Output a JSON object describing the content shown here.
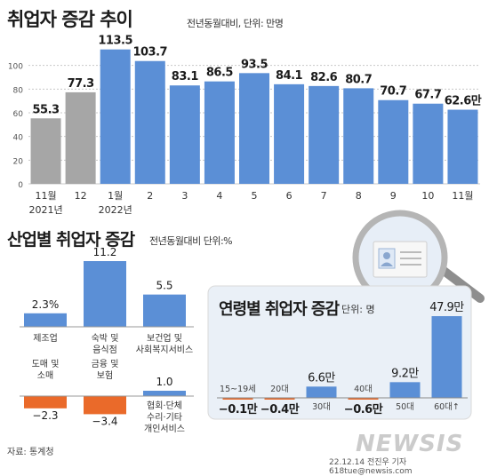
{
  "header": {
    "title": "취업자 증감 추이",
    "subtitle": "전년동월대비, 단위: 만명"
  },
  "section2": {
    "title": "산업별 취업자 증감",
    "subtitle": "전년동월대비 단위:%"
  },
  "section3": {
    "title": "연령별 취업자 증감",
    "subtitle": "단위: 명"
  },
  "footer": {
    "source": "자료: 통계청",
    "credit": "22.12.14 전진우 기자 618tue@newsis.com",
    "watermark": "NEWSIS"
  },
  "colors": {
    "blue": "#5b8fd6",
    "gray": "#a6a6a6",
    "orange": "#ea6a2a",
    "panel": "#eaf0f7"
  },
  "chart_data": [
    {
      "type": "bar",
      "title": "취업자 증감 추이",
      "categories": [
        "11월",
        "12",
        "1월",
        "2",
        "3",
        "4",
        "5",
        "6",
        "7",
        "8",
        "9",
        "10",
        "11월"
      ],
      "category_sublabels": [
        "2021년",
        "",
        "2022년",
        "",
        "",
        "",
        "",
        "",
        "",
        "",
        "",
        "",
        ""
      ],
      "values": [
        55.3,
        77.3,
        113.5,
        103.7,
        83.1,
        86.5,
        93.5,
        84.1,
        82.6,
        80.7,
        70.7,
        67.7,
        62.6
      ],
      "value_labels": [
        "55.3",
        "77.3",
        "113.5",
        "103.7",
        "83.1",
        "86.5",
        "93.5",
        "84.1",
        "82.6",
        "80.7",
        "70.7",
        "67.7",
        "62.6만"
      ],
      "year_group": [
        "2021",
        "2021",
        "2022",
        "2022",
        "2022",
        "2022",
        "2022",
        "2022",
        "2022",
        "2022",
        "2022",
        "2022",
        "2022"
      ],
      "ylim": [
        0,
        120
      ],
      "yticks": [
        0,
        20,
        40,
        60,
        80,
        100
      ],
      "grid": true
    },
    {
      "type": "bar",
      "title": "산업별 취업자 증감",
      "categories": [
        "제조업",
        "숙박 및 음식점",
        "보건업 및 사회복지서비스",
        "도매 및 소매",
        "금융 및 보험",
        "협회·단체 수리·기타 개인서비스"
      ],
      "category_lines": [
        [
          "제조업"
        ],
        [
          "숙박 및",
          "음식점"
        ],
        [
          "보건업 및",
          "사회복지서비스"
        ],
        [
          "도매 및",
          "소매"
        ],
        [
          "금융 및",
          "보험"
        ],
        [
          "협회·단체",
          "수리·기타",
          "개인서비스"
        ]
      ],
      "values": [
        2.3,
        11.2,
        5.5,
        -2.3,
        -3.4,
        1.0
      ],
      "value_labels": [
        "2.3%",
        "11.2",
        "5.5",
        "−2.3",
        "−3.4",
        "1.0"
      ]
    },
    {
      "type": "bar",
      "title": "연령별 취업자 증감",
      "categories": [
        "15~19세",
        "20대",
        "30대",
        "40대",
        "50대",
        "60대↑"
      ],
      "values": [
        -0.1,
        -0.4,
        6.6,
        -0.6,
        9.2,
        47.9
      ],
      "value_labels": [
        "−0.1만",
        "−0.4만",
        "6.6만",
        "−0.6만",
        "9.2만",
        "47.9만"
      ]
    }
  ]
}
